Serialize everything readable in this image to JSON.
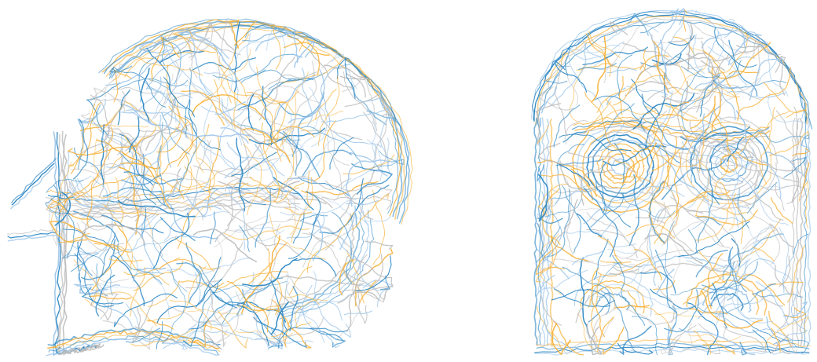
{
  "palette": {
    "background": "#ffffff",
    "strand_colors": [
      "#f7b23b",
      "#2a86c4",
      "#9ec6ea",
      "#bdbdbd"
    ]
  },
  "views": [
    {
      "id": "skull-lateral-view",
      "description_icon": "skull-side-icon"
    },
    {
      "id": "skull-frontal-view",
      "description_icon": "skull-front-icon"
    }
  ]
}
